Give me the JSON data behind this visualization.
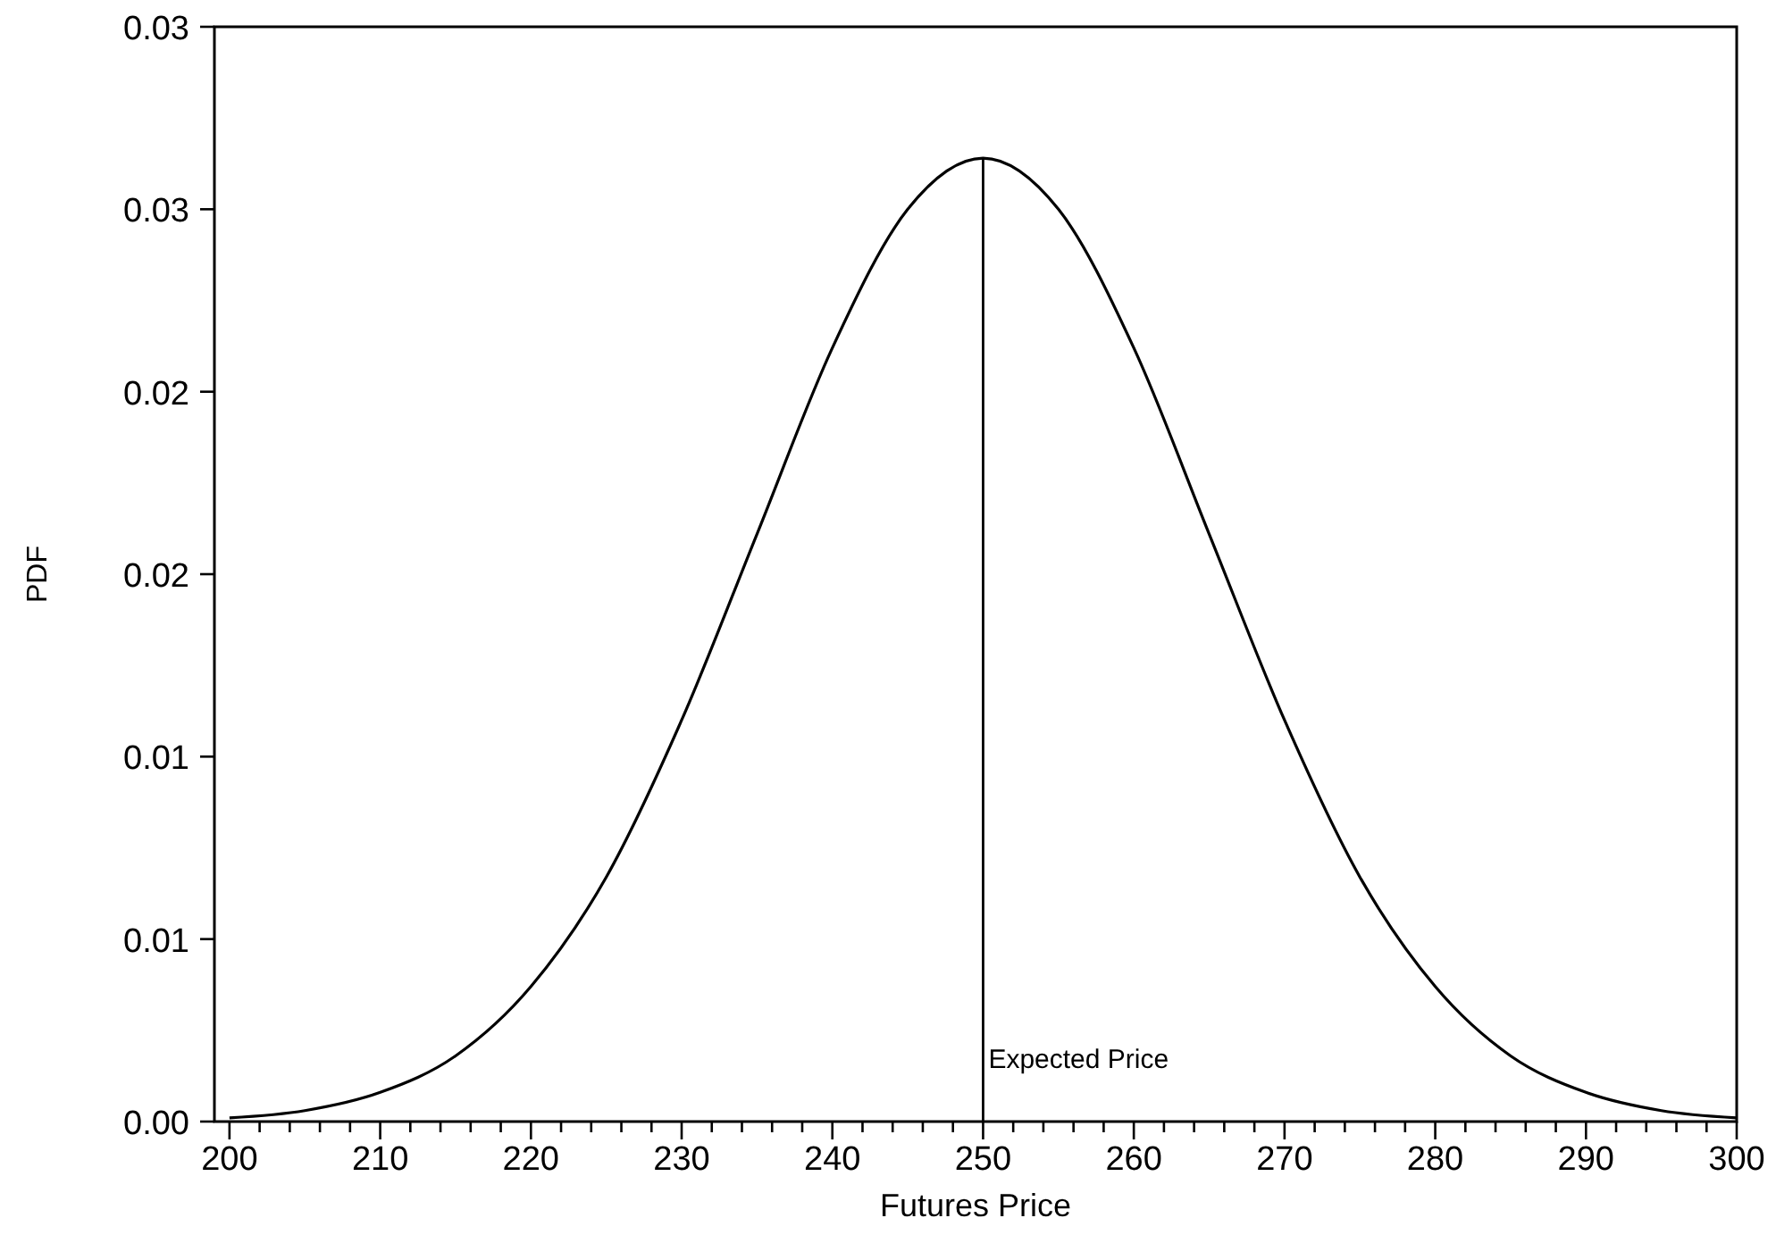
{
  "chart_data": {
    "type": "line",
    "xlabel": "Futures Price",
    "ylabel": "PDF",
    "x": [
      200,
      205,
      210,
      215,
      220,
      225,
      230,
      235,
      240,
      245,
      250,
      255,
      260,
      265,
      270,
      275,
      280,
      285,
      290,
      295,
      300
    ],
    "series": [
      {
        "color": "#000000",
        "values": [
          0.0001,
          0.0003,
          0.0008,
          0.0018,
          0.0037,
          0.0067,
          0.011,
          0.0161,
          0.0212,
          0.025,
          0.0264,
          0.025,
          0.0212,
          0.0161,
          0.011,
          0.0067,
          0.0037,
          0.0018,
          0.0008,
          0.0003,
          0.0001
        ]
      }
    ],
    "xlim": [
      199,
      300
    ],
    "xticks": [
      200,
      {
        "value": 202,
        "label": null
      },
      {
        "value": 204,
        "label": null
      },
      {
        "value": 206,
        "label": null
      },
      {
        "value": 208,
        "label": null
      },
      210,
      {
        "value": 212,
        "label": null
      },
      {
        "value": 214,
        "label": null
      },
      {
        "value": 216,
        "label": null
      },
      {
        "value": 218,
        "label": null
      },
      220,
      {
        "value": 222,
        "label": null
      },
      {
        "value": 224,
        "label": null
      },
      {
        "value": 226,
        "label": null
      },
      {
        "value": 228,
        "label": null
      },
      230,
      {
        "value": 232,
        "label": null
      },
      {
        "value": 234,
        "label": null
      },
      {
        "value": 236,
        "label": null
      },
      {
        "value": 238,
        "label": null
      },
      240,
      {
        "value": 242,
        "label": null
      },
      {
        "value": 244,
        "label": null
      },
      {
        "value": 246,
        "label": null
      },
      {
        "value": 248,
        "label": null
      },
      250,
      {
        "value": 252,
        "label": null
      },
      {
        "value": 254,
        "label": null
      },
      {
        "value": 256,
        "label": null
      },
      {
        "value": 258,
        "label": null
      },
      260,
      {
        "value": 262,
        "label": null
      },
      {
        "value": 264,
        "label": null
      },
      {
        "value": 266,
        "label": null
      },
      {
        "value": 268,
        "label": null
      },
      270,
      {
        "value": 272,
        "label": null
      },
      {
        "value": 274,
        "label": null
      },
      {
        "value": 276,
        "label": null
      },
      {
        "value": 278,
        "label": null
      },
      280,
      {
        "value": 282,
        "label": null
      },
      {
        "value": 284,
        "label": null
      },
      {
        "value": 286,
        "label": null
      },
      {
        "value": 288,
        "label": null
      },
      290,
      {
        "value": 292,
        "label": null
      },
      {
        "value": 294,
        "label": null
      },
      {
        "value": 296,
        "label": null
      },
      {
        "value": 298,
        "label": null
      },
      300
    ],
    "ylim": [
      0,
      0.03
    ],
    "yticks": [
      {
        "value": 0,
        "label": "0.00"
      },
      {
        "value": 0.005,
        "label": "0.01"
      },
      {
        "value": 0.01,
        "label": "0.01"
      },
      {
        "value": 0.015,
        "label": "0.02"
      },
      {
        "value": 0.02,
        "label": "0.02"
      },
      {
        "value": 0.025,
        "label": "0.03"
      },
      {
        "value": 0.03,
        "label": "0.03"
      }
    ],
    "ref_lines": [
      {
        "axis": "x",
        "value": 250,
        "label": "Expected Price",
        "color": "#000000"
      }
    ],
    "grid": false,
    "marker": "none",
    "line_style": "solid"
  }
}
